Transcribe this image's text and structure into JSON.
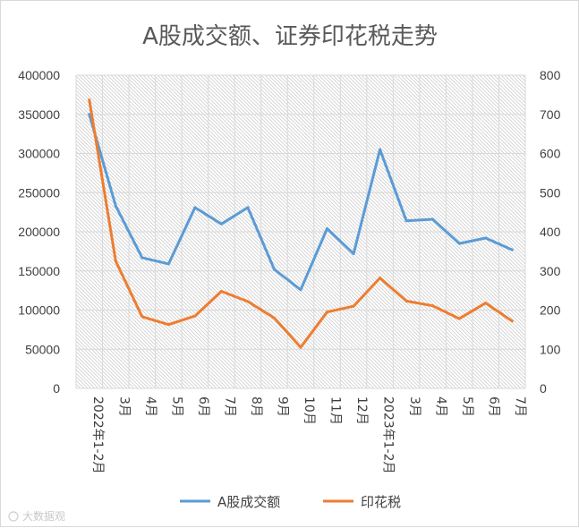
{
  "chart_data": {
    "type": "line",
    "title": "A股成交额、证券印花税走势",
    "categories": [
      "2022年1-2月",
      "3月",
      "4月",
      "5月",
      "6月",
      "7月",
      "8月",
      "9月",
      "10月",
      "11月",
      "12月",
      "2023年1-2月",
      "3月",
      "4月",
      "5月",
      "6月",
      "7月"
    ],
    "series": [
      {
        "name": "A股成交额",
        "axis": "left",
        "color": "#5b9bd5",
        "values": [
          350000,
          233000,
          167000,
          159000,
          231000,
          210000,
          231000,
          152000,
          126000,
          204000,
          172000,
          305000,
          214000,
          216000,
          185000,
          192000,
          177000
        ]
      },
      {
        "name": "印花税",
        "axis": "right",
        "color": "#ed7d31",
        "values": [
          737,
          325,
          183,
          163,
          185,
          248,
          222,
          180,
          105,
          195,
          210,
          282,
          223,
          211,
          178,
          218,
          172
        ]
      }
    ],
    "ylim_left": [
      0,
      400000
    ],
    "yticks_left": [
      "0",
      "50000",
      "100000",
      "150000",
      "200000",
      "250000",
      "300000",
      "350000",
      "400000"
    ],
    "ylim_right": [
      0,
      800
    ],
    "yticks_right": [
      "0",
      "100",
      "200",
      "300",
      "400",
      "500",
      "600",
      "700",
      "800"
    ],
    "grid": true,
    "legend_position": "bottom"
  },
  "watermark": "大数据观"
}
